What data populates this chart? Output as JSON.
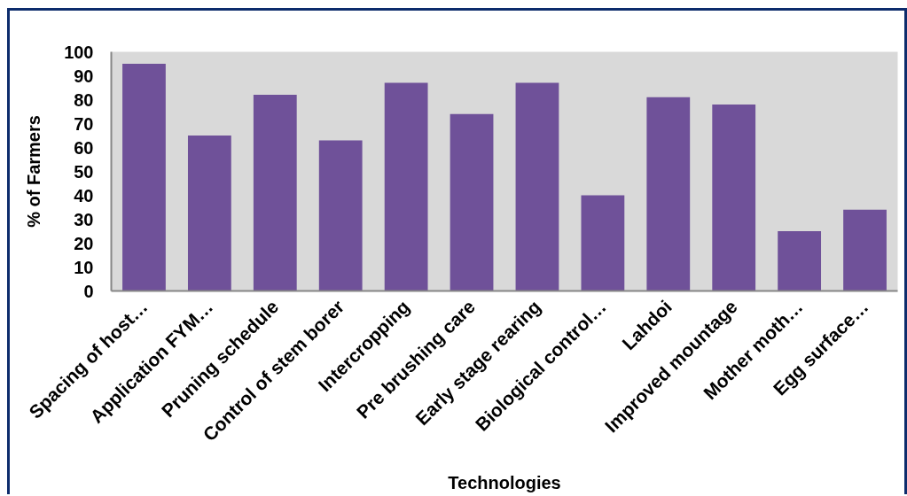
{
  "chart_data": {
    "type": "bar",
    "xlabel": "Technologies",
    "ylabel": "% of Farmers",
    "categories": [
      "Spacing of host…",
      "Application FYM…",
      "Pruning schedule",
      "Control of stem borer",
      "Intercropping",
      "Pre brushing care",
      "Early stage rearing",
      "Biological control…",
      "Lahdoi",
      "Improved mountage",
      "Mother moth…",
      "Egg surface…"
    ],
    "values": [
      95,
      65,
      82,
      63,
      87,
      74,
      87,
      40,
      81,
      78,
      25,
      34
    ],
    "color": "#6f5199",
    "ylim": [
      0,
      100
    ],
    "yticks": [
      0,
      10,
      20,
      30,
      40,
      50,
      60,
      70,
      80,
      90,
      100
    ],
    "grid": false
  }
}
